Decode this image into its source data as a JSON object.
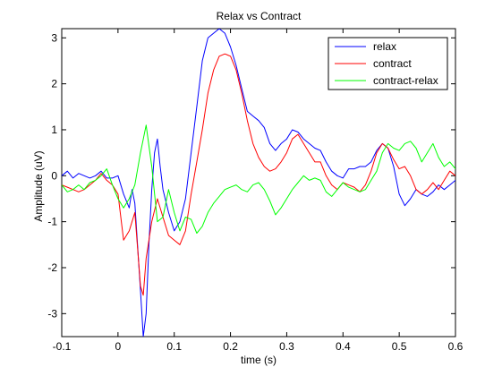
{
  "chart_data": {
    "type": "line",
    "title": "Relax vs Contract",
    "xlabel": "time (s)",
    "ylabel": "Amplitude (uV)",
    "xlim": [
      -0.1,
      0.6
    ],
    "ylim": [
      -3.5,
      3.2
    ],
    "x_ticks": [
      -0.1,
      0,
      0.1,
      0.2,
      0.3,
      0.4,
      0.5,
      0.6
    ],
    "x_tick_labels": [
      "-0.1",
      "0",
      "0.1",
      "0.2",
      "0.3",
      "0.4",
      "0.5",
      "0.6"
    ],
    "y_ticks": [
      -3,
      -2,
      -1,
      0,
      1,
      2,
      3
    ],
    "y_tick_labels": [
      "-3",
      "-2",
      "-1",
      "0",
      "1",
      "2",
      "3"
    ],
    "grid": false,
    "legend_position": "top-right",
    "series": [
      {
        "name": "relax",
        "color": "#0000ff",
        "x": [
          -0.1,
          -0.09,
          -0.08,
          -0.07,
          -0.06,
          -0.05,
          -0.04,
          -0.03,
          -0.02,
          -0.01,
          0,
          0.01,
          0.02,
          0.025,
          0.03,
          0.04,
          0.045,
          0.05,
          0.055,
          0.06,
          0.065,
          0.07,
          0.075,
          0.08,
          0.09,
          0.1,
          0.11,
          0.12,
          0.13,
          0.14,
          0.15,
          0.16,
          0.17,
          0.18,
          0.19,
          0.2,
          0.21,
          0.22,
          0.23,
          0.24,
          0.25,
          0.26,
          0.27,
          0.28,
          0.29,
          0.3,
          0.31,
          0.32,
          0.33,
          0.34,
          0.35,
          0.36,
          0.37,
          0.38,
          0.39,
          0.4,
          0.41,
          0.42,
          0.43,
          0.44,
          0.45,
          0.46,
          0.47,
          0.48,
          0.49,
          0.5,
          0.51,
          0.52,
          0.53,
          0.54,
          0.55,
          0.56,
          0.57,
          0.58,
          0.59,
          0.6
        ],
        "y": [
          0,
          0.1,
          -0.05,
          0.05,
          0.0,
          -0.05,
          0.0,
          0.1,
          -0.05,
          -0.05,
          0.0,
          -0.4,
          -0.7,
          -0.3,
          -0.6,
          -2.5,
          -3.5,
          -3.0,
          -1.5,
          -0.3,
          0.5,
          0.8,
          0.2,
          -0.3,
          -0.8,
          -1.2,
          -1.0,
          -0.5,
          0.5,
          1.5,
          2.5,
          3.0,
          3.1,
          3.2,
          3.1,
          2.8,
          2.4,
          1.9,
          1.4,
          1.3,
          1.2,
          1.05,
          0.7,
          0.55,
          0.7,
          0.8,
          1.0,
          0.95,
          0.8,
          0.7,
          0.6,
          0.55,
          0.3,
          0.1,
          0.0,
          -0.05,
          0.15,
          0.15,
          0.2,
          0.2,
          0.3,
          0.55,
          0.7,
          0.6,
          0.2,
          -0.4,
          -0.65,
          -0.5,
          -0.3,
          -0.4,
          -0.45,
          -0.35,
          -0.2,
          -0.3,
          -0.2,
          -0.1
        ]
      },
      {
        "name": "contract",
        "color": "#ff0000",
        "x": [
          -0.1,
          -0.09,
          -0.08,
          -0.07,
          -0.06,
          -0.05,
          -0.04,
          -0.03,
          -0.02,
          -0.01,
          0,
          0.01,
          0.02,
          0.03,
          0.04,
          0.045,
          0.05,
          0.06,
          0.07,
          0.08,
          0.09,
          0.1,
          0.11,
          0.12,
          0.13,
          0.14,
          0.15,
          0.16,
          0.17,
          0.18,
          0.19,
          0.2,
          0.21,
          0.22,
          0.23,
          0.24,
          0.25,
          0.26,
          0.27,
          0.28,
          0.29,
          0.3,
          0.31,
          0.32,
          0.33,
          0.34,
          0.35,
          0.36,
          0.37,
          0.38,
          0.39,
          0.4,
          0.41,
          0.42,
          0.43,
          0.44,
          0.45,
          0.46,
          0.47,
          0.48,
          0.49,
          0.5,
          0.51,
          0.52,
          0.53,
          0.54,
          0.55,
          0.56,
          0.57,
          0.58,
          0.59,
          0.6
        ],
        "y": [
          -0.2,
          -0.25,
          -0.3,
          -0.35,
          -0.3,
          -0.2,
          -0.1,
          0.05,
          -0.1,
          -0.2,
          -0.4,
          -1.4,
          -1.2,
          -0.8,
          -2.4,
          -2.6,
          -1.8,
          -1.0,
          -0.5,
          -0.9,
          -1.3,
          -1.4,
          -1.5,
          -1.2,
          -0.4,
          0.3,
          1.0,
          1.8,
          2.3,
          2.6,
          2.65,
          2.6,
          2.3,
          1.8,
          1.2,
          0.7,
          0.4,
          0.2,
          0.1,
          0.15,
          0.3,
          0.5,
          0.8,
          0.9,
          0.7,
          0.5,
          0.3,
          0.3,
          0.0,
          -0.2,
          -0.3,
          -0.15,
          -0.2,
          -0.25,
          -0.35,
          -0.2,
          0.1,
          0.5,
          0.7,
          0.6,
          0.35,
          0.15,
          0.2,
          0.0,
          -0.3,
          -0.4,
          -0.3,
          -0.15,
          -0.3,
          -0.1,
          0.1,
          0.0
        ]
      },
      {
        "name": "contract-relax",
        "color": "#00ff00",
        "x": [
          -0.1,
          -0.09,
          -0.08,
          -0.07,
          -0.06,
          -0.05,
          -0.04,
          -0.03,
          -0.02,
          -0.01,
          0,
          0.01,
          0.02,
          0.03,
          0.04,
          0.05,
          0.06,
          0.07,
          0.08,
          0.09,
          0.1,
          0.11,
          0.12,
          0.13,
          0.14,
          0.15,
          0.16,
          0.17,
          0.18,
          0.19,
          0.2,
          0.21,
          0.22,
          0.23,
          0.24,
          0.25,
          0.26,
          0.27,
          0.28,
          0.29,
          0.3,
          0.31,
          0.32,
          0.33,
          0.34,
          0.35,
          0.36,
          0.37,
          0.38,
          0.39,
          0.4,
          0.41,
          0.42,
          0.43,
          0.44,
          0.45,
          0.46,
          0.47,
          0.48,
          0.49,
          0.5,
          0.51,
          0.52,
          0.53,
          0.54,
          0.55,
          0.56,
          0.57,
          0.58,
          0.59,
          0.6
        ],
        "y": [
          -0.2,
          -0.35,
          -0.3,
          -0.2,
          -0.3,
          -0.15,
          -0.1,
          0.0,
          0.15,
          -0.2,
          -0.5,
          -0.7,
          -0.5,
          -0.2,
          0.5,
          1.1,
          0.2,
          -1.0,
          -0.9,
          -0.3,
          -0.8,
          -1.2,
          -0.9,
          -0.95,
          -1.25,
          -1.1,
          -0.8,
          -0.6,
          -0.45,
          -0.3,
          -0.25,
          -0.2,
          -0.3,
          -0.35,
          -0.2,
          -0.15,
          -0.3,
          -0.55,
          -0.85,
          -0.7,
          -0.5,
          -0.3,
          -0.15,
          0.0,
          -0.1,
          -0.05,
          -0.1,
          -0.35,
          -0.45,
          -0.3,
          -0.15,
          -0.25,
          -0.3,
          -0.35,
          -0.3,
          -0.1,
          0.1,
          0.5,
          0.7,
          0.6,
          0.55,
          0.7,
          0.75,
          0.6,
          0.3,
          0.5,
          0.7,
          0.4,
          0.2,
          0.3,
          0.15
        ]
      }
    ]
  }
}
